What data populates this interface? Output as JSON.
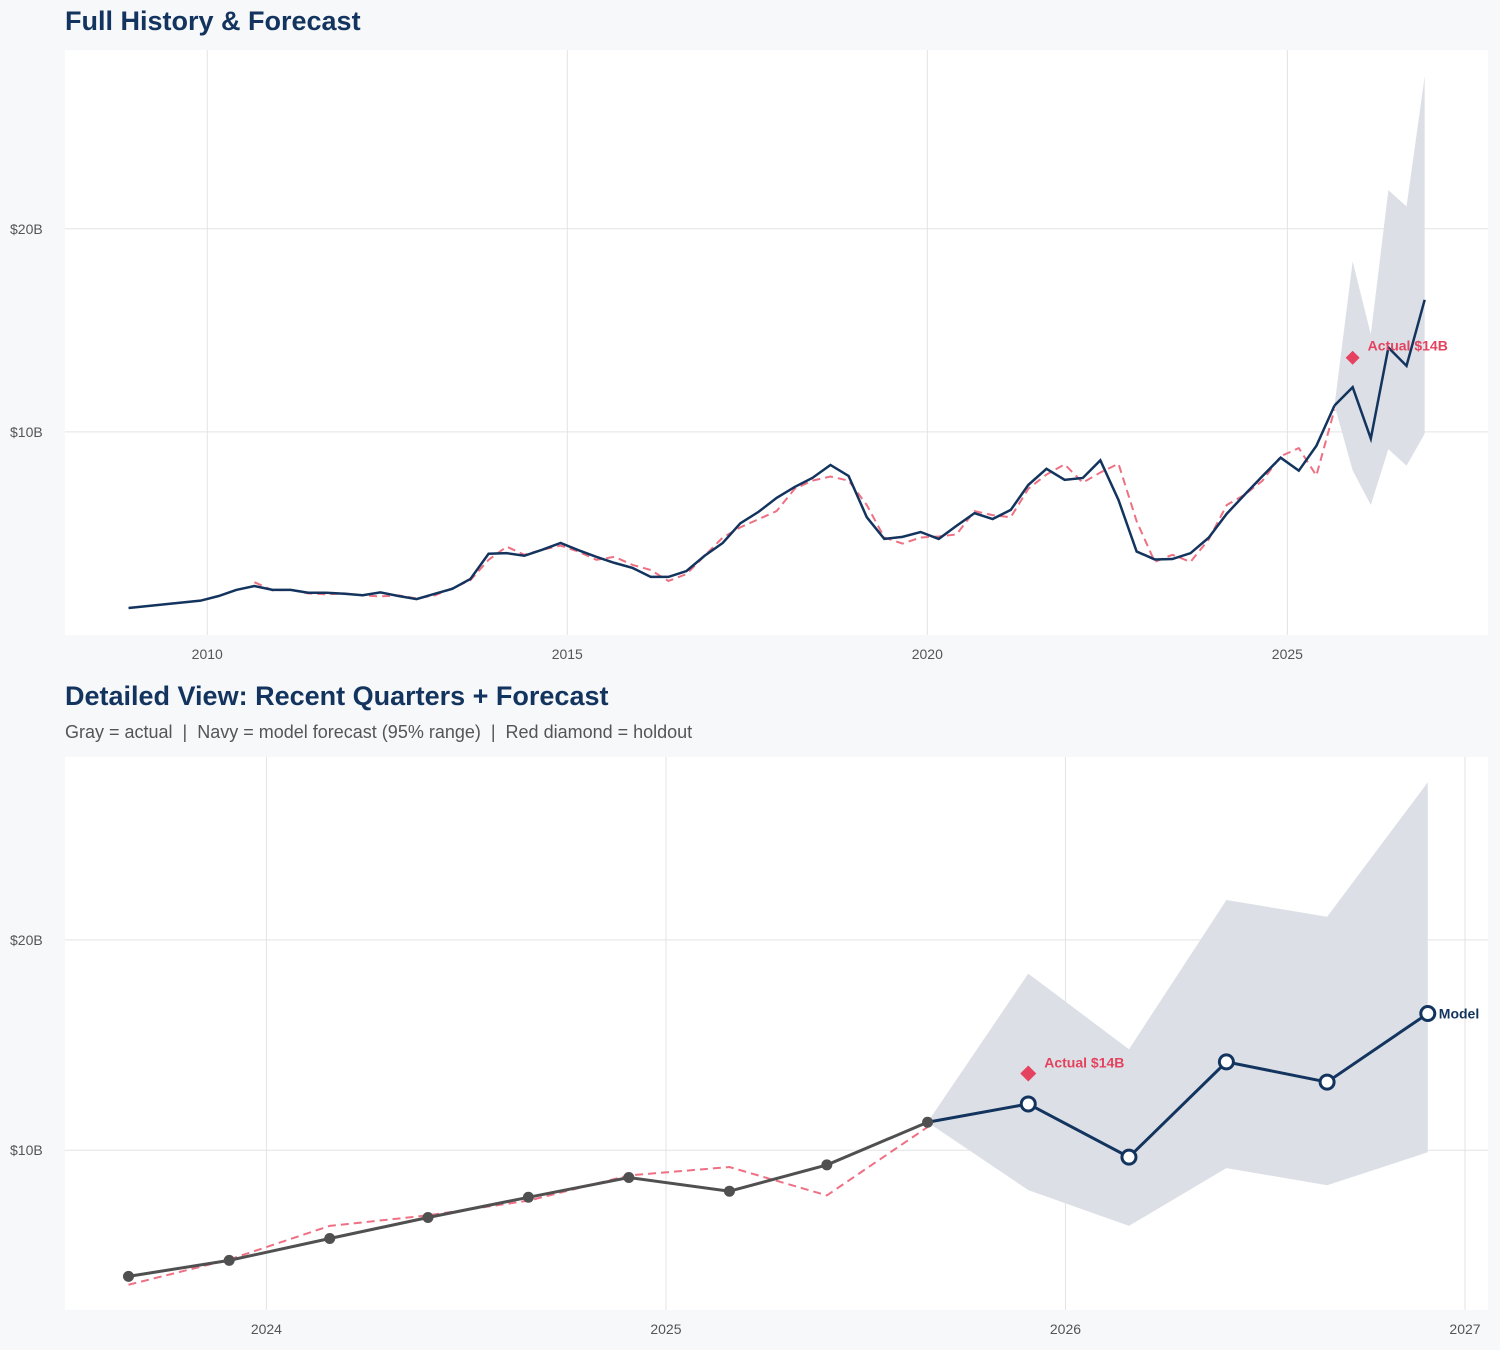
{
  "colors": {
    "actual_history": "#13345e",
    "actual_detail": "#505050",
    "forecast": "#13345e",
    "fitted": "#ee7083",
    "holdout": "#e4425e",
    "band": "#dce0e6",
    "gridline": "#e3e3e3"
  },
  "chart_data": [
    {
      "type": "line",
      "title": "Full History & Forecast",
      "xlabel": "",
      "ylabel": "",
      "xlim": [
        "2008-01-10",
        "2027-10-15"
      ],
      "ylim": [
        0,
        28.8
      ],
      "x_ticks": [
        {
          "value": "2010-01-01",
          "label": "2010"
        },
        {
          "value": "2015-01-01",
          "label": "2015"
        },
        {
          "value": "2020-01-01",
          "label": "2020"
        },
        {
          "value": "2025-01-01",
          "label": "2025"
        }
      ],
      "y_ticks": [
        {
          "value": 10,
          "label": "$10B"
        },
        {
          "value": 20,
          "label": "$20B"
        }
      ],
      "grid": true,
      "series": [
        {
          "role": "actual",
          "style": "solid navy",
          "x": [
            "2008-11-28",
            "2009-11-28",
            "2010-02-28",
            "2010-05-28",
            "2010-08-28",
            "2010-11-28",
            "2011-02-28",
            "2011-05-28",
            "2011-08-28",
            "2011-11-28",
            "2012-02-28",
            "2012-05-28",
            "2012-08-28",
            "2012-11-28",
            "2013-02-28",
            "2013-05-28",
            "2013-08-28",
            "2013-11-28",
            "2014-02-28",
            "2014-05-28",
            "2014-08-28",
            "2014-11-28",
            "2015-02-28",
            "2015-05-28",
            "2015-08-28",
            "2015-11-28",
            "2016-02-28",
            "2016-05-28",
            "2016-08-28",
            "2016-11-28",
            "2017-02-28",
            "2017-05-28",
            "2017-08-28",
            "2017-11-28",
            "2018-02-28",
            "2018-05-28",
            "2018-08-28",
            "2018-11-28",
            "2019-02-28",
            "2019-05-28",
            "2019-08-28",
            "2019-11-28",
            "2020-02-28",
            "2020-05-28",
            "2020-08-28",
            "2020-11-28",
            "2021-02-28",
            "2021-05-28",
            "2021-08-28",
            "2021-11-28",
            "2022-02-28",
            "2022-05-28",
            "2022-08-28",
            "2022-11-28",
            "2023-02-28",
            "2023-05-28",
            "2023-08-28",
            "2023-11-28",
            "2024-02-28",
            "2024-05-28",
            "2024-08-28",
            "2024-11-28",
            "2025-02-28",
            "2025-05-28",
            "2025-08-28"
          ],
          "values": [
            1.33,
            1.69,
            1.92,
            2.22,
            2.41,
            2.22,
            2.22,
            2.08,
            2.08,
            2.03,
            1.96,
            2.1,
            1.92,
            1.77,
            2.03,
            2.27,
            2.76,
            4.0,
            4.03,
            3.9,
            4.2,
            4.53,
            4.17,
            3.85,
            3.55,
            3.3,
            2.86,
            2.86,
            3.15,
            3.9,
            4.53,
            5.5,
            6.06,
            6.75,
            7.29,
            7.73,
            8.37,
            7.83,
            5.8,
            4.73,
            4.83,
            5.07,
            4.73,
            5.37,
            6.0,
            5.71,
            6.16,
            7.39,
            8.18,
            7.64,
            7.73,
            8.6,
            6.65,
            4.11,
            3.72,
            3.74,
            4.03,
            4.79,
            5.97,
            6.9,
            7.83,
            8.73,
            8.09,
            9.31,
            11.3
          ]
        },
        {
          "role": "fitted",
          "style": "dashed red",
          "x": [
            "2010-08-28",
            "2010-11-28",
            "2011-02-28",
            "2011-05-28",
            "2011-08-28",
            "2011-11-28",
            "2012-02-28",
            "2012-05-28",
            "2012-08-28",
            "2012-11-28",
            "2013-02-28",
            "2013-05-28",
            "2013-08-28",
            "2013-11-28",
            "2014-02-28",
            "2014-05-28",
            "2014-08-28",
            "2014-11-28",
            "2015-02-28",
            "2015-05-28",
            "2015-08-28",
            "2015-11-28",
            "2016-02-28",
            "2016-05-28",
            "2016-08-28",
            "2016-11-28",
            "2017-02-28",
            "2017-05-28",
            "2017-08-28",
            "2017-11-28",
            "2018-02-28",
            "2018-05-28",
            "2018-08-28",
            "2018-11-28",
            "2019-02-28",
            "2019-05-28",
            "2019-08-28",
            "2019-11-28",
            "2020-02-28",
            "2020-05-28",
            "2020-08-28",
            "2020-11-28",
            "2021-02-28",
            "2021-05-28",
            "2021-08-28",
            "2021-11-28",
            "2022-02-28",
            "2022-05-28",
            "2022-08-28",
            "2022-11-28",
            "2023-02-28",
            "2023-05-28",
            "2023-08-28",
            "2023-11-28",
            "2024-02-28",
            "2024-05-28",
            "2024-08-28",
            "2024-11-28",
            "2025-02-28",
            "2025-05-28",
            "2025-08-28"
          ],
          "values": [
            2.6,
            2.2,
            2.22,
            2.05,
            2.0,
            2.05,
            1.95,
            1.9,
            1.95,
            1.8,
            1.95,
            2.3,
            2.7,
            3.7,
            4.35,
            3.95,
            4.2,
            4.4,
            4.1,
            3.7,
            3.85,
            3.45,
            3.2,
            2.66,
            3.0,
            3.9,
            4.8,
            5.3,
            5.7,
            6.1,
            7.2,
            7.6,
            7.8,
            7.6,
            6.4,
            4.8,
            4.5,
            4.8,
            4.85,
            4.95,
            6.1,
            5.9,
            5.8,
            7.2,
            7.9,
            8.4,
            7.5,
            8.0,
            8.43,
            5.6,
            3.6,
            3.95,
            3.6,
            4.7,
            6.4,
            6.9,
            7.6,
            8.8,
            9.2,
            7.85,
            11.1
          ]
        },
        {
          "role": "forecast",
          "style": "solid navy",
          "x": [
            "2025-08-28",
            "2025-11-28",
            "2026-02-28",
            "2026-05-28",
            "2026-08-28",
            "2026-11-28"
          ],
          "values": [
            11.3,
            12.2,
            9.67,
            14.15,
            13.25,
            16.5
          ],
          "band_upper": [
            11.3,
            18.4,
            14.8,
            21.9,
            21.1,
            27.5
          ],
          "band_lower": [
            11.3,
            8.1,
            6.4,
            9.15,
            8.33,
            9.9
          ]
        }
      ],
      "annotations": [
        {
          "x": "2025-11-28",
          "y": 13.65,
          "marker": "diamond",
          "label": "Actual $14B"
        }
      ]
    },
    {
      "type": "line",
      "title": "Detailed View: Recent Quarters + Forecast",
      "subtitle": "Gray = actual  |  Navy = model forecast (95% range)  |  Red diamond = holdout",
      "xlabel": "",
      "ylabel": "",
      "xlim": [
        "2023-07-01",
        "2027-01-22"
      ],
      "ylim": [
        2.4,
        28.7
      ],
      "x_ticks": [
        {
          "value": "2024-01-01",
          "label": "2024"
        },
        {
          "value": "2025-01-01",
          "label": "2025"
        },
        {
          "value": "2026-01-01",
          "label": "2026"
        },
        {
          "value": "2027-01-01",
          "label": "2027"
        }
      ],
      "y_ticks": [
        {
          "value": 10,
          "label": "$10B"
        },
        {
          "value": 20,
          "label": "$20B"
        }
      ],
      "grid": true,
      "series": [
        {
          "role": "actual",
          "style": "solid gray with dots",
          "x": [
            "2023-08-28",
            "2023-11-28",
            "2024-02-28",
            "2024-05-28",
            "2024-08-28",
            "2024-11-28",
            "2025-02-28",
            "2025-05-28",
            "2025-08-28"
          ],
          "values": [
            4.0,
            4.76,
            5.8,
            6.8,
            7.76,
            8.7,
            8.05,
            9.3,
            11.33
          ]
        },
        {
          "role": "fitted",
          "style": "dashed red",
          "x": [
            "2023-08-28",
            "2023-11-28",
            "2024-02-28",
            "2024-05-28",
            "2024-08-28",
            "2024-11-28",
            "2025-02-28",
            "2025-05-28",
            "2025-08-28"
          ],
          "values": [
            3.6,
            4.8,
            6.4,
            6.9,
            7.6,
            8.8,
            9.2,
            7.85,
            11.1
          ]
        },
        {
          "role": "forecast",
          "style": "solid navy with open circles",
          "end_label": "Model",
          "x": [
            "2025-08-28",
            "2025-11-28",
            "2026-02-28",
            "2026-05-28",
            "2026-08-28",
            "2026-11-28"
          ],
          "values": [
            11.33,
            12.2,
            9.67,
            14.2,
            13.24,
            16.5
          ],
          "band_upper": [
            11.33,
            18.4,
            14.8,
            21.9,
            21.1,
            27.5
          ],
          "band_lower": [
            11.33,
            8.1,
            6.4,
            9.15,
            8.33,
            9.9
          ]
        }
      ],
      "annotations": [
        {
          "x": "2025-11-28",
          "y": 13.65,
          "marker": "diamond",
          "label": "Actual $14B"
        }
      ]
    }
  ]
}
